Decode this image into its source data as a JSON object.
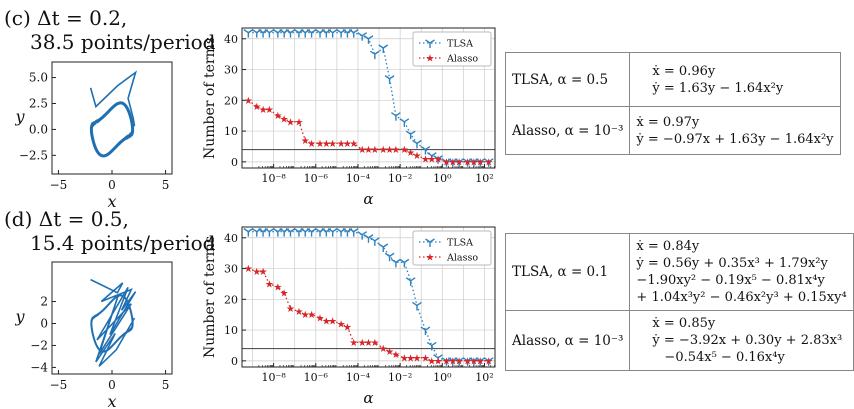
{
  "colors": {
    "tlsa": "#2e82c0",
    "alasso": "#d62728",
    "traj": "#1f6fb3",
    "grid": "#cccccc",
    "hline": "#555555"
  },
  "panels": [
    {
      "id": "c",
      "caption_line1": "(c) Δt = 0.2,",
      "caption_line2": "38.5 points/period",
      "phase": {
        "xlabel": "x",
        "ylabel": "y",
        "xticks": [
          {
            "v": -5,
            "t": "−5"
          },
          {
            "v": 0,
            "t": "0"
          },
          {
            "v": 5,
            "t": "5"
          }
        ],
        "yticks": [
          {
            "v": 5,
            "t": "5.0"
          },
          {
            "v": 2.5,
            "t": "2.5"
          },
          {
            "v": 0,
            "t": "0.0"
          },
          {
            "v": -2.5,
            "t": "−2.5"
          }
        ],
        "xlim": [
          -5.6,
          5.6
        ],
        "ylim": [
          -4.3,
          6.5
        ]
      },
      "chart_data": {
        "type": "line",
        "xlabel": "α",
        "ylabel": "Number of terms",
        "xlog_range": [
          -9.5,
          2.5
        ],
        "ylim": [
          -2,
          43.5
        ],
        "yticks": [
          0,
          10,
          20,
          30,
          40
        ],
        "xticks": [
          {
            "e": -8,
            "t": "10⁻⁸"
          },
          {
            "e": -6,
            "t": "10⁻⁶"
          },
          {
            "e": -4,
            "t": "10⁻⁴"
          },
          {
            "e": -2,
            "t": "10⁻²"
          },
          {
            "e": 0,
            "t": "10⁰"
          },
          {
            "e": 2,
            "t": "10²"
          }
        ],
        "hline": 4,
        "legend": [
          "TLSA",
          "Alasso"
        ],
        "series": [
          {
            "name": "TLSA",
            "log_alpha": [
              -9.2,
              -8.8,
              -8.5,
              -8.2,
              -7.8,
              -7.5,
              -7.2,
              -6.8,
              -6.5,
              -6.2,
              -5.8,
              -5.5,
              -5.2,
              -4.8,
              -4.5,
              -4.2,
              -3.8,
              -3.5,
              -3.2,
              -2.8,
              -2.5,
              -2.2,
              -1.8,
              -1.5,
              -1.2,
              -0.8,
              -0.5,
              -0.2,
              0.2,
              0.5,
              0.8,
              1.2,
              1.5,
              1.8,
              2.2
            ],
            "values": [
              42,
              42,
              42,
              42,
              42,
              42,
              42,
              42,
              42,
              42,
              42,
              42,
              42,
              42,
              42,
              42,
              41,
              40,
              35,
              37,
              27,
              15,
              13,
              9,
              6,
              4,
              2,
              1,
              0,
              0,
              0,
              0,
              0,
              0,
              0
            ]
          },
          {
            "name": "Alasso",
            "log_alpha": [
              -9.2,
              -8.8,
              -8.5,
              -8.2,
              -7.8,
              -7.5,
              -7.2,
              -6.8,
              -6.5,
              -6.2,
              -5.8,
              -5.5,
              -5.2,
              -4.8,
              -4.5,
              -4.2,
              -3.8,
              -3.5,
              -3.2,
              -2.8,
              -2.5,
              -2.2,
              -1.8,
              -1.5,
              -1.2,
              -0.8,
              -0.5,
              -0.2,
              0.2,
              0.5,
              0.8,
              1.2,
              1.5,
              1.8,
              2.2
            ],
            "values": [
              20,
              18,
              17,
              17,
              15,
              14,
              13,
              13,
              7,
              6,
              6,
              6,
              6,
              6,
              6,
              6,
              4,
              4,
              4,
              4,
              4,
              4,
              4,
              3,
              2,
              1,
              1,
              1,
              0,
              0,
              0,
              0,
              0,
              0,
              0
            ]
          }
        ]
      },
      "table": [
        {
          "label": "TLSA, α = 0.5",
          "eqs": [
            "ẋ = 0.96y",
            "ẏ = 1.63y − 1.64x²y"
          ]
        },
        {
          "label": "Alasso, α = 10⁻³",
          "eqs": [
            "ẋ = 0.97y",
            "ẏ = −0.97x + 1.63y − 1.64x²y"
          ]
        }
      ]
    },
    {
      "id": "d",
      "caption_line1": "(d) Δt = 0.5,",
      "caption_line2": "15.4 points/period",
      "phase": {
        "xlabel": "x",
        "ylabel": "y",
        "xticks": [
          {
            "v": -5,
            "t": "−5"
          },
          {
            "v": 0,
            "t": "0"
          },
          {
            "v": 5,
            "t": "5"
          }
        ],
        "yticks": [
          {
            "v": 2,
            "t": "2"
          },
          {
            "v": 0,
            "t": "0"
          },
          {
            "v": -2,
            "t": "−2"
          },
          {
            "v": -4,
            "t": "−4"
          }
        ],
        "xlim": [
          -5.6,
          5.6
        ],
        "ylim": [
          -4.6,
          5.6
        ]
      },
      "chart_data": {
        "type": "line",
        "xlabel": "α",
        "ylabel": "Number of terms",
        "xlog_range": [
          -9.5,
          2.5
        ],
        "ylim": [
          -2,
          43.5
        ],
        "yticks": [
          0,
          10,
          20,
          30,
          40
        ],
        "xticks": [
          {
            "e": -8,
            "t": "10⁻⁸"
          },
          {
            "e": -6,
            "t": "10⁻⁶"
          },
          {
            "e": -4,
            "t": "10⁻⁴"
          },
          {
            "e": -2,
            "t": "10⁻²"
          },
          {
            "e": 0,
            "t": "10⁰"
          },
          {
            "e": 2,
            "t": "10²"
          }
        ],
        "hline": 4,
        "legend": [
          "TLSA",
          "Alasso"
        ],
        "series": [
          {
            "name": "TLSA",
            "log_alpha": [
              -9.2,
              -8.8,
              -8.5,
              -8.2,
              -7.8,
              -7.5,
              -7.2,
              -6.8,
              -6.5,
              -6.2,
              -5.8,
              -5.5,
              -5.2,
              -4.8,
              -4.5,
              -4.2,
              -3.8,
              -3.5,
              -3.2,
              -2.8,
              -2.5,
              -2.2,
              -1.8,
              -1.5,
              -1.2,
              -0.8,
              -0.5,
              -0.2,
              0.2,
              0.5,
              0.8,
              1.2,
              1.5,
              1.8,
              2.2
            ],
            "values": [
              42,
              42,
              42,
              42,
              42,
              42,
              42,
              42,
              42,
              42,
              42,
              42,
              42,
              42,
              42,
              42,
              41,
              40,
              39,
              37,
              34,
              32,
              32,
              26,
              18,
              10,
              5,
              1,
              0,
              0,
              0,
              0,
              0,
              0,
              0
            ]
          },
          {
            "name": "Alasso",
            "log_alpha": [
              -9.2,
              -8.8,
              -8.5,
              -8.2,
              -7.8,
              -7.5,
              -7.2,
              -6.8,
              -6.5,
              -6.2,
              -5.8,
              -5.5,
              -5.2,
              -4.8,
              -4.5,
              -4.2,
              -3.8,
              -3.5,
              -3.2,
              -2.8,
              -2.5,
              -2.2,
              -1.8,
              -1.5,
              -1.2,
              -0.8,
              -0.5,
              -0.2,
              0.2,
              0.5,
              0.8,
              1.2,
              1.5,
              1.8,
              2.2
            ],
            "values": [
              30,
              29,
              29,
              25,
              24,
              22,
              17,
              16,
              15,
              15,
              14,
              13,
              13,
              12,
              11,
              6,
              6,
              6,
              6,
              4,
              3,
              2,
              1,
              1,
              1,
              1,
              0,
              0,
              0,
              0,
              0,
              0,
              0,
              0,
              0
            ]
          }
        ]
      },
      "table": [
        {
          "label": "TLSA, α = 0.1",
          "eqs": [
            "ẋ = 0.84y",
            "ẏ = 0.56y + 0.35x³ + 1.79x²y",
            "−1.90xy² − 0.19x⁵ − 0.81x⁴y",
            "+ 1.04x³y² − 0.46x²y³ + 0.15xy⁴"
          ]
        },
        {
          "label": "Alasso, α = 10⁻³",
          "eqs": [
            "ẋ = 0.85y",
            "ẏ = −3.92x + 0.30y + 2.83x³",
            "−0.54x⁵ − 0.16x⁴y"
          ]
        }
      ]
    }
  ]
}
